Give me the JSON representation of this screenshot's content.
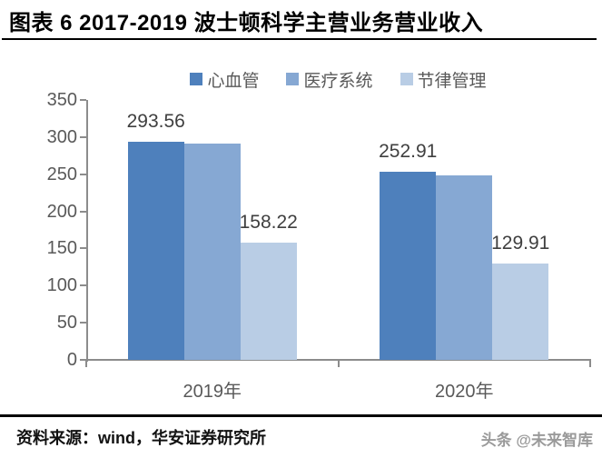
{
  "header": {
    "title": "图表 6 2017-2019 波士顿科学主营业务营业收入"
  },
  "chart_data": {
    "type": "bar",
    "title": "图表 6 2017-2019 波士顿科学主营业务营业收入",
    "categories": [
      "2019年",
      "2020年"
    ],
    "series": [
      {
        "name": "心血管",
        "color": "#4E80BC",
        "values": [
          293.56,
          252.91
        ],
        "data_labels": [
          "293.56",
          "252.91"
        ]
      },
      {
        "name": "医疗系统",
        "color": "#86A8D3",
        "values": [
          291,
          249
        ],
        "data_labels": [
          null,
          null
        ]
      },
      {
        "name": "节律管理",
        "color": "#B9CDE5",
        "values": [
          158.22,
          129.91
        ],
        "data_labels": [
          "158.22",
          "129.91"
        ]
      }
    ],
    "ylim": [
      0,
      350
    ],
    "ytick_step": 50,
    "yticks": [
      0,
      50,
      100,
      150,
      200,
      250,
      300,
      350
    ],
    "xlabel": "",
    "ylabel": "",
    "grid": false,
    "legend_position": "top"
  },
  "footer": {
    "source": "资料来源：wind，华安证券研究所",
    "watermark": "头条 @未来智库"
  },
  "colors": {
    "axis": "#8C8C8C",
    "tick_label": "#595959",
    "data_label": "#3F3F3F",
    "title": "#000000",
    "rule": "#000000"
  }
}
